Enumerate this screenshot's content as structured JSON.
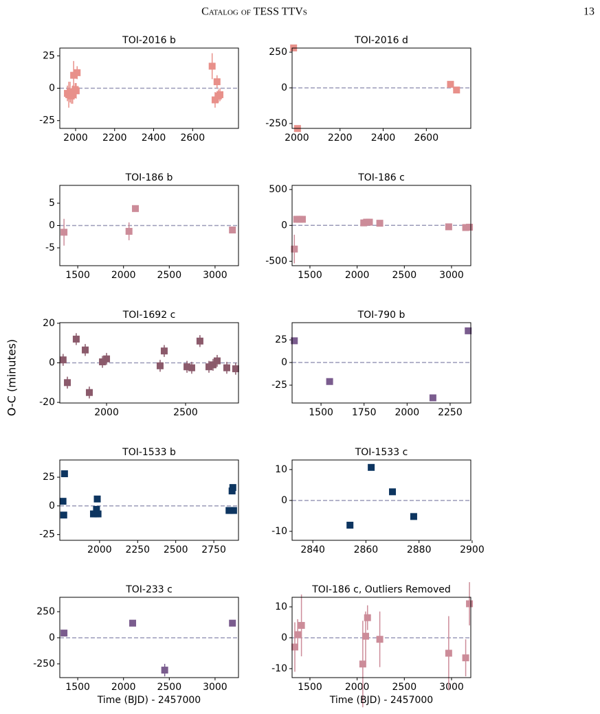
{
  "header": {
    "title": "Catalog of TESS TTVs",
    "page": "13"
  },
  "figure": {
    "ylabel": "O-C (minutes)"
  },
  "chart_data": [
    {
      "type": "scatter",
      "title": "TOI-2016 b",
      "color": "#e8908a",
      "x": [
        1958,
        1965,
        1972,
        1978,
        1985,
        1990,
        1998,
        2003,
        2008,
        2700,
        2715,
        2725,
        2732,
        2740
      ],
      "values": [
        -4,
        -5,
        -3,
        -6,
        -5,
        10,
        -1,
        -2,
        12,
        17,
        -9,
        5,
        -6,
        -5
      ],
      "errors": [
        6,
        10,
        8,
        6,
        7,
        11,
        5,
        6,
        5,
        10,
        6,
        5,
        5,
        5
      ],
      "xlim": [
        1919,
        2835
      ],
      "ylim": [
        -31,
        31
      ],
      "xticks": [
        2000,
        2200,
        2400,
        2600
      ],
      "yticks": [
        -25,
        0,
        25
      ],
      "reference_line": 0
    },
    {
      "type": "scatter",
      "title": "TOI-2016 d",
      "color": "#e8908a",
      "x": [
        1985,
        2003,
        2712,
        2740
      ],
      "values": [
        280,
        -285,
        25,
        -15
      ],
      "xlim": [
        1978,
        2806
      ],
      "ylim": [
        -284,
        279
      ],
      "xticks": [
        2000,
        2200,
        2400,
        2600
      ],
      "yticks": [
        -250,
        0,
        250
      ],
      "reference_line": 0
    },
    {
      "type": "scatter",
      "title": "TOI-186 b",
      "color": "#cc8c99",
      "x": [
        1350,
        2060,
        2130,
        3190
      ],
      "values": [
        -1.5,
        -1.3,
        3.8,
        -1
      ],
      "errors": [
        3,
        2,
        0.4,
        0.4
      ],
      "xlim": [
        1304,
        3256
      ],
      "ylim": [
        -9,
        9
      ],
      "xticks": [
        1500,
        2000,
        2500,
        3000
      ],
      "yticks": [
        -5,
        0,
        5
      ],
      "reference_line": 0
    },
    {
      "type": "scatter",
      "title": "TOI-186 c",
      "color": "#cc8c99",
      "x": [
        1335,
        1360,
        1390,
        1420,
        2070,
        2100,
        2130,
        2240,
        2970,
        3150,
        3190
      ],
      "values": [
        -330,
        85,
        85,
        85,
        35,
        45,
        45,
        30,
        -20,
        -30,
        -25
      ],
      "errors": [
        200,
        10,
        10,
        10,
        15,
        10,
        10,
        12,
        12,
        10,
        10
      ],
      "xlim": [
        1311,
        3204
      ],
      "ylim": [
        -562,
        558
      ],
      "xticks": [
        1500,
        2000,
        2500,
        3000
      ],
      "yticks": [
        -500,
        0,
        500
      ],
      "reference_line": 0
    },
    {
      "type": "scatter",
      "title": "TOI-1692 c",
      "color": "#8b5a6b",
      "x": [
        1725,
        1752,
        1808,
        1865,
        1891,
        1974,
        2000,
        2339,
        2365,
        2509,
        2539,
        2591,
        2648,
        2674,
        2700,
        2761,
        2817
      ],
      "values": [
        1.5,
        -10,
        12,
        6.5,
        -15,
        0.5,
        2,
        -1.5,
        6,
        -2,
        -2.5,
        11,
        -2,
        -1,
        1,
        -2.5,
        -3
      ],
      "errors": [
        3,
        3,
        3,
        3,
        3,
        3,
        3,
        3,
        3,
        3,
        3,
        3,
        3,
        3,
        3,
        3,
        3
      ],
      "xlim": [
        1704,
        2835
      ],
      "ylim": [
        -20.3,
        20.3
      ],
      "xticks": [
        2000,
        2500
      ],
      "yticks": [
        -20,
        0,
        20
      ],
      "reference_line": 0
    },
    {
      "type": "scatter",
      "title": "TOI-790 b",
      "color": "#7a5c8e",
      "x": [
        1345,
        1550,
        2150,
        2355
      ],
      "values": [
        24,
        -21,
        -39,
        35
      ],
      "xlim": [
        1332,
        2370
      ],
      "ylim": [
        -44.7,
        44
      ],
      "xticks": [
        1500,
        1750,
        2000,
        2250
      ],
      "yticks": [
        -25,
        0,
        25
      ],
      "reference_line": 0
    },
    {
      "type": "scatter",
      "title": "TOI-1533 b",
      "color": "#0d3560",
      "x": [
        1760,
        1765,
        1770,
        1960,
        1975,
        1980,
        1985,
        1990,
        2850,
        2860,
        2870,
        2875,
        2880
      ],
      "values": [
        4,
        -8,
        28,
        -7,
        -7,
        -3,
        6,
        -7,
        -4,
        -4,
        13,
        16,
        -4
      ],
      "xlim": [
        1739,
        2912
      ],
      "ylim": [
        -30,
        40
      ],
      "xticks": [
        2000,
        2250,
        2500,
        2750
      ],
      "yticks": [
        -25,
        0,
        25
      ],
      "reference_line": 0
    },
    {
      "type": "scatter",
      "title": "TOI-1533 c",
      "color": "#0d3560",
      "x": [
        2854,
        2862,
        2870,
        2878
      ],
      "values": [
        -8,
        10.7,
        2.8,
        -5.2
      ],
      "xlim": [
        2832.2,
        2899.5
      ],
      "ylim": [
        -12.9,
        13.1
      ],
      "xticks": [
        2840,
        2860,
        2880,
        2900
      ],
      "yticks": [
        -10,
        0,
        10
      ],
      "reference_line": 0
    },
    {
      "type": "scatter",
      "title": "TOI-233 c",
      "color": "#7a5c8e",
      "xlabel": "Time (BJD) - 2457000",
      "x": [
        1350,
        2100,
        2450,
        3190
      ],
      "values": [
        45,
        140,
        -310,
        140
      ],
      "errors": [
        10,
        10,
        60,
        10
      ],
      "xlim": [
        1304,
        3256
      ],
      "ylim": [
        -382,
        388
      ],
      "xticks": [
        1500,
        2000,
        2500,
        3000
      ],
      "yticks": [
        -250,
        0,
        250
      ],
      "reference_line": 0
    },
    {
      "type": "scatter",
      "title": "TOI-186 c, Outliers Removed",
      "color": "#cc8c99",
      "xlabel": "Time (BJD) - 2457000",
      "x": [
        1340,
        1370,
        1410,
        2060,
        2090,
        2110,
        2240,
        2970,
        3150,
        3190
      ],
      "values": [
        -3,
        1,
        4,
        -8.5,
        0.5,
        6.5,
        -0.5,
        -5,
        -6.5,
        11
      ],
      "errors": [
        8,
        5,
        10,
        14,
        8,
        4,
        9,
        12,
        6,
        7
      ],
      "xlim": [
        1311,
        3204
      ],
      "ylim": [
        -12.9,
        13.1
      ],
      "xticks": [
        1500,
        2000,
        2500,
        3000
      ],
      "yticks": [
        -10,
        0,
        10
      ],
      "reference_line": 0
    }
  ]
}
